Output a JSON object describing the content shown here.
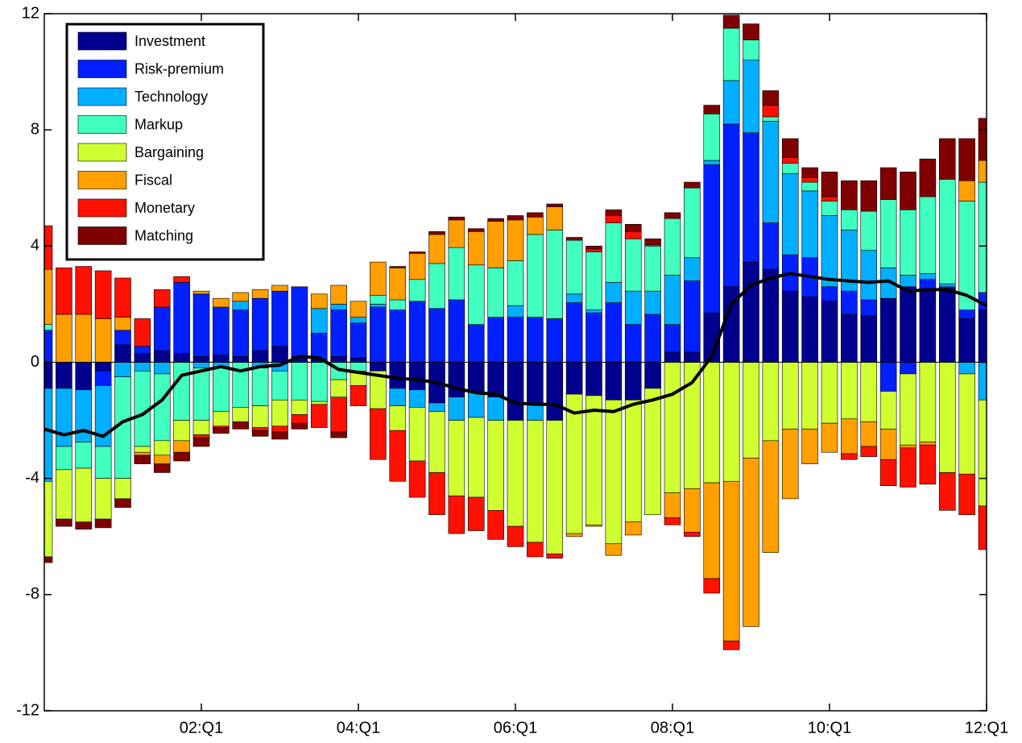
{
  "chart_data": {
    "type": "bar",
    "stacked": true,
    "legend": "upper left",
    "categories": [
      null,
      null,
      null,
      null,
      null,
      null,
      null,
      null,
      "02:Q1",
      null,
      null,
      null,
      null,
      null,
      null,
      null,
      "04:Q1",
      null,
      null,
      null,
      null,
      null,
      null,
      null,
      "06:Q1",
      null,
      null,
      null,
      null,
      null,
      null,
      null,
      "08:Q1",
      null,
      null,
      null,
      null,
      null,
      null,
      null,
      "10:Q1",
      null,
      null,
      null,
      null,
      null,
      null,
      null,
      "12:Q1"
    ],
    "ylim": [
      -12,
      12
    ],
    "yticks": [
      -12,
      -8,
      -4,
      0,
      4,
      8,
      12
    ],
    "series": [
      {
        "name": "Investment",
        "color": "#00008f",
        "values": [
          -0.9,
          -0.9,
          -0.95,
          -0.3,
          0.6,
          0.3,
          0.4,
          0.3,
          0.2,
          0.25,
          0.2,
          0.4,
          0.55,
          0.2,
          0.1,
          0.2,
          0.15,
          -0.3,
          -0.9,
          -0.95,
          -1.4,
          -1.2,
          -1.0,
          -1.2,
          -2.0,
          -1.4,
          -2.0,
          -1.1,
          -1.15,
          -1.3,
          -1.3,
          -0.9,
          0.35,
          0.35,
          1.7,
          2.6,
          3.45,
          3.2,
          2.45,
          2.25,
          2.1,
          1.65,
          1.6,
          2.2,
          2.6,
          2.5,
          2.55,
          1.5,
          1.8
        ]
      },
      {
        "name": "Risk-premium",
        "color": "#0020ff",
        "values": [
          1.1,
          0,
          0,
          -0.5,
          0.5,
          0.25,
          1.5,
          2.45,
          2.15,
          1.65,
          1.6,
          1.8,
          1.9,
          2.4,
          0.9,
          1.6,
          1.2,
          1.9,
          1.8,
          2.1,
          1.85,
          2.15,
          1.3,
          1.55,
          1.55,
          1.55,
          1.5,
          2.05,
          1.7,
          2.05,
          1.3,
          1.65,
          0.95,
          2.45,
          5.1,
          5.6,
          4.45,
          1.6,
          1.25,
          1.35,
          0.5,
          0.8,
          0.55,
          -1.0,
          -0.4,
          0.35,
          0.05,
          0.3,
          0.6
        ]
      },
      {
        "name": "Technology",
        "color": "#00afff",
        "values": [
          -3.2,
          -2.0,
          -1.8,
          -2.1,
          -0.5,
          -0.3,
          -0.4,
          0,
          -0.2,
          -0.2,
          0.3,
          -0.2,
          -0.3,
          0,
          0.85,
          0.2,
          0.2,
          0.1,
          -0.6,
          -0.6,
          -0.3,
          -0.8,
          -0.9,
          -0.8,
          0.4,
          -0.6,
          0,
          0.3,
          0.1,
          0.7,
          1.15,
          0.8,
          1.7,
          0.8,
          0.15,
          1.5,
          2.5,
          3.5,
          2.8,
          2.3,
          2.45,
          2.1,
          1.7,
          1.05,
          0.4,
          0.2,
          0.1,
          -0.4,
          -1.3
        ]
      },
      {
        "name": "Markup",
        "color": "#40ffbf",
        "values": [
          0.2,
          -0.8,
          -0.9,
          -1.1,
          -3.5,
          -2.6,
          -2.3,
          -2.0,
          -1.8,
          -1.5,
          -1.55,
          -1.3,
          -1.0,
          -1.3,
          -1.35,
          -0.6,
          -0.3,
          0.3,
          0.35,
          0.75,
          1.55,
          1.8,
          2.05,
          1.7,
          1.55,
          2.85,
          3.05,
          1.85,
          2.0,
          2.05,
          1.8,
          1.55,
          1.95,
          2.4,
          1.6,
          1.8,
          0.7,
          0.15,
          0.35,
          0.3,
          0.5,
          0.7,
          1.35,
          2.35,
          2.25,
          2.65,
          3.6,
          3.75,
          3.8
        ]
      },
      {
        "name": "Bargaining",
        "color": "#cfff30",
        "values": [
          -2.6,
          -1.7,
          -1.85,
          -1.4,
          -0.7,
          -0.2,
          -0.5,
          -0.7,
          -0.5,
          -0.5,
          -0.5,
          -0.75,
          -0.9,
          -0.5,
          -0.1,
          -0.6,
          -0.5,
          -1.3,
          -0.85,
          -1.85,
          -2.1,
          -2.6,
          -2.75,
          -3.1,
          -3.65,
          -4.2,
          -4.6,
          -4.8,
          -4.45,
          -4.95,
          -4.2,
          -4.35,
          -4.5,
          -4.35,
          -4.15,
          -4.1,
          -3.3,
          -2.7,
          -2.3,
          -2.3,
          -2.1,
          -1.95,
          -2.05,
          -1.3,
          -2.45,
          -2.75,
          -3.8,
          -3.45,
          -3.65
        ]
      },
      {
        "name": "Fiscal",
        "color": "#ff9f00",
        "values": [
          1.9,
          1.65,
          1.65,
          1.5,
          0.45,
          -0.1,
          -0.3,
          -0.4,
          0.1,
          0.3,
          0.3,
          0.3,
          0.2,
          0,
          0.5,
          0.65,
          0.55,
          1.15,
          1.1,
          0.9,
          1.0,
          0.95,
          1.15,
          1.6,
          1.4,
          0.6,
          0.8,
          -0.1,
          -0.05,
          -0.4,
          -0.45,
          0,
          -0.85,
          -1.5,
          -3.3,
          -5.5,
          -5.8,
          -3.85,
          -2.4,
          -1.2,
          -1.0,
          -1.2,
          -0.85,
          -1.05,
          -0.1,
          -0.1,
          0,
          0.7,
          0.75
        ]
      },
      {
        "name": "Monetary",
        "color": "#ff1000",
        "values": [
          1.5,
          1.6,
          1.65,
          1.65,
          1.35,
          0.95,
          0.6,
          0.2,
          -0.1,
          -0.05,
          0,
          -0.1,
          -0.2,
          -0.3,
          -0.8,
          -1.2,
          -0.7,
          -1.75,
          -1.75,
          -1.25,
          -1.45,
          -1.3,
          -1.15,
          -1.0,
          -0.7,
          -0.5,
          -0.15,
          0,
          0.1,
          0.25,
          0.25,
          0.05,
          -0.25,
          -0.15,
          -0.5,
          -0.3,
          0,
          0.4,
          0.2,
          0.15,
          0.15,
          -0.2,
          -0.35,
          -0.9,
          -1.35,
          -1.35,
          -1.3,
          -1.4,
          -1.5
        ]
      },
      {
        "name": "Matching",
        "color": "#800000",
        "values": [
          -0.2,
          -0.25,
          -0.25,
          -0.3,
          -0.3,
          -0.3,
          -0.3,
          -0.3,
          -0.3,
          -0.2,
          -0.25,
          -0.2,
          -0.25,
          -0.2,
          0,
          -0.2,
          0,
          0,
          0.05,
          0.05,
          0.1,
          0.1,
          0.1,
          0.1,
          0.15,
          0.15,
          0.1,
          0.1,
          0.1,
          0.2,
          0.25,
          0.2,
          0.2,
          0.2,
          0.3,
          0.45,
          0.55,
          0.5,
          0.65,
          0.35,
          0.85,
          1.0,
          1.05,
          1.1,
          1.3,
          1.3,
          1.4,
          1.45,
          1.45
        ]
      }
    ],
    "line": {
      "color": "#000000",
      "values": [
        -2.3,
        -2.5,
        -2.35,
        -2.55,
        -2.05,
        -1.8,
        -1.3,
        -0.45,
        -0.3,
        -0.15,
        -0.3,
        -0.15,
        -0.1,
        0.2,
        0.15,
        -0.25,
        -0.35,
        -0.45,
        -0.55,
        -0.6,
        -0.7,
        -0.9,
        -1.05,
        -1.1,
        -1.4,
        -1.45,
        -1.45,
        -1.75,
        -1.65,
        -1.7,
        -1.45,
        -1.3,
        -1.1,
        -0.7,
        0.2,
        2.0,
        2.65,
        2.9,
        3.05,
        2.95,
        2.85,
        2.8,
        2.75,
        2.8,
        2.45,
        2.5,
        2.5,
        2.3,
        1.95
      ]
    }
  }
}
